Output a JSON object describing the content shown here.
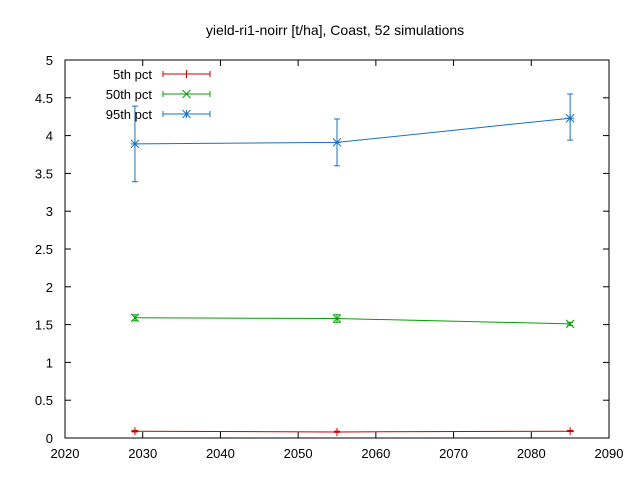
{
  "chart_data": {
    "type": "line",
    "title": "yield-ri1-noirr [t/ha], Coast, 52 simulations",
    "xlabel": "",
    "ylabel": "",
    "xlim": [
      2020,
      2090
    ],
    "ylim": [
      0,
      5
    ],
    "x_ticks": [
      2020,
      2030,
      2040,
      2050,
      2060,
      2070,
      2080,
      2090
    ],
    "y_ticks": [
      0,
      0.5,
      1,
      1.5,
      2,
      2.5,
      3,
      3.5,
      4,
      4.5,
      5
    ],
    "x_tick_labels": [
      "2020",
      "2030",
      "2040",
      "2050",
      "2060",
      "2070",
      "2080",
      "2090"
    ],
    "y_tick_labels": [
      "0",
      "0.5",
      "1",
      "1.5",
      "2",
      "2.5",
      "3",
      "3.5",
      "4",
      "4.5",
      "5"
    ],
    "grid": false,
    "legend_position": "top-left",
    "x": [
      2029,
      2055,
      2085
    ],
    "series": [
      {
        "name": "5th pct",
        "color": "#cc0000",
        "marker": "plus",
        "values": [
          0.09,
          0.08,
          0.09
        ],
        "err_low": [
          0.08,
          0.075,
          0.085
        ],
        "err_high": [
          0.1,
          0.09,
          0.1
        ]
      },
      {
        "name": "50th pct",
        "color": "#00a000",
        "marker": "cross",
        "values": [
          1.59,
          1.58,
          1.51
        ],
        "err_low": [
          1.55,
          1.53,
          1.49
        ],
        "err_high": [
          1.63,
          1.63,
          1.53
        ]
      },
      {
        "name": "95th pct",
        "color": "#1a70c0",
        "marker": "star",
        "values": [
          3.89,
          3.91,
          4.23
        ],
        "err_low": [
          3.39,
          3.6,
          3.94
        ],
        "err_high": [
          4.39,
          4.22,
          4.55
        ]
      }
    ]
  }
}
